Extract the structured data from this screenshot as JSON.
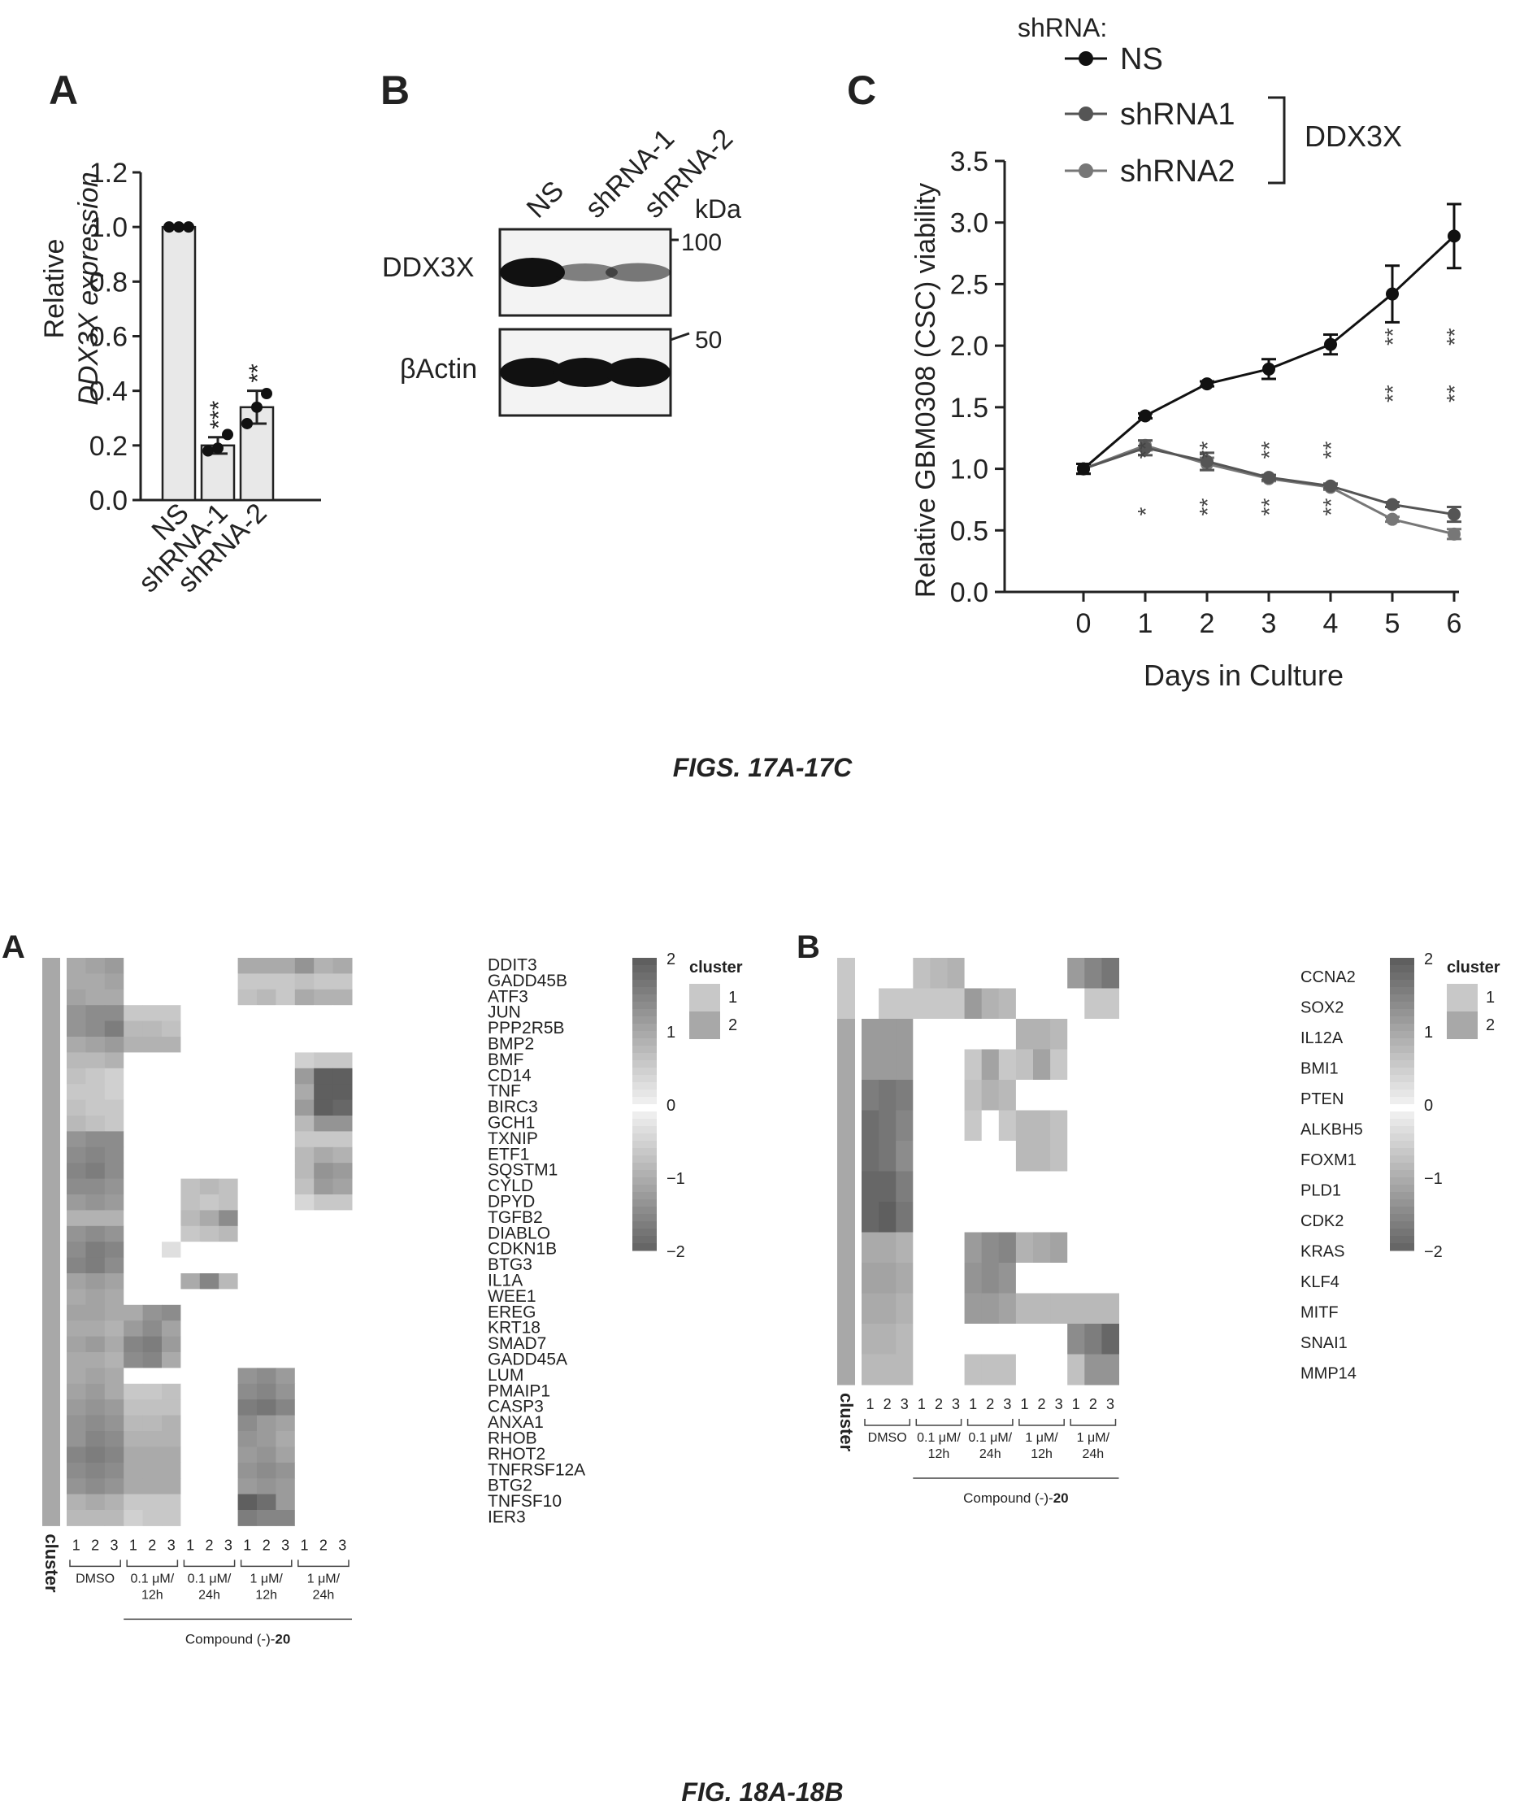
{
  "figure17": {
    "caption": "FIGS. 17A-17C",
    "panelA": {
      "label": "A",
      "ylabel1": "Relative",
      "ylabel2": "DDX3X expression",
      "categories": [
        "NS",
        "shRNA-1",
        "shRNA-2"
      ],
      "sig": [
        "",
        "***",
        "**"
      ]
    },
    "panelB": {
      "label": "B",
      "lanes": [
        "NS",
        "shRNA-1",
        "shRNA-2"
      ],
      "unit": "kDa",
      "rows": [
        "DDX3X",
        "βActin"
      ],
      "markers": [
        "100",
        "50"
      ],
      "band_intensity": {
        "DDX3X": [
          1.0,
          0.35,
          0.4
        ],
        "βActin": [
          1.0,
          1.0,
          1.0
        ]
      }
    },
    "panelC": {
      "label": "C",
      "legend_title": "shRNA:",
      "legend": [
        "NS",
        "shRNA1",
        "shRNA2"
      ],
      "bracket_label": "DDX3X",
      "ylabel": "Relative GBM0308 (CSC) viability",
      "xlabel": "Days in Culture",
      "sig": [
        "",
        "**\n*",
        "**\n**",
        "**\n**",
        "**\n**",
        "**\n**",
        "**\n**"
      ]
    }
  },
  "figure18": {
    "caption": "FIG. 18A-18B",
    "panelA": {
      "label": "A",
      "genes": [
        "DDIT3",
        "GADD45B",
        "ATF3",
        "JUN",
        "PPP2R5B",
        "BMP2",
        "BMF",
        "CD14",
        "TNF",
        "BIRC3",
        "GCH1",
        "TXNIP",
        "ETF1",
        "SQSTM1",
        "CYLD",
        "DPYD",
        "TGFB2",
        "DIABLO",
        "CDKN1B",
        "BTG3",
        "IL1A",
        "WEE1",
        "EREG",
        "KRT18",
        "SMAD7",
        "GADD45A",
        "LUM",
        "PMAIP1",
        "CASP3",
        "ANXA1",
        "RHOB",
        "RHOT2",
        "TNFRSF12A",
        "BTG2",
        "TNFSF10",
        "IER3"
      ]
    },
    "panelB": {
      "label": "B",
      "genes": [
        "CCNA2",
        "SOX2",
        "IL12A",
        "BMI1",
        "PTEN",
        "ALKBH5",
        "FOXM1",
        "PLD1",
        "CDK2",
        "KRAS",
        "KLF4",
        "MITF",
        "SNAI1",
        "MMP14"
      ]
    },
    "cluster_label": "cluster",
    "cluster_legend_title": "cluster",
    "cluster_values": [
      "1",
      "2"
    ],
    "scale_ticks": [
      "2",
      "1",
      "0",
      "−1",
      "−2"
    ],
    "replicates": [
      "1",
      "2",
      "3"
    ],
    "groups": [
      "DMSO",
      "0.1 μM/\n12h",
      "0.1 μM/\n24h",
      "1 μM/\n12h",
      "1 μM/\n24h"
    ],
    "compound_label": "Compound (-)-",
    "compound_number": "20"
  },
  "chart_data": [
    {
      "type": "bar",
      "title": "",
      "categories": [
        "NS",
        "shRNA-1",
        "shRNA-2"
      ],
      "values": [
        1.0,
        0.2,
        0.34
      ],
      "errors": [
        0.0,
        0.03,
        0.06
      ],
      "points": [
        [
          1.0,
          1.0,
          1.0
        ],
        [
          0.18,
          0.19,
          0.24
        ],
        [
          0.28,
          0.34,
          0.39
        ]
      ],
      "xlabel": "",
      "ylabel": "Relative DDX3X expression",
      "ylim": [
        0,
        1.2
      ],
      "yticks": [
        0.0,
        0.2,
        0.4,
        0.6,
        0.8,
        1.0,
        1.2
      ]
    },
    {
      "type": "line",
      "title": "",
      "x": [
        0,
        1,
        2,
        3,
        4,
        5,
        6
      ],
      "series": [
        {
          "name": "NS",
          "values": [
            1.0,
            1.43,
            1.69,
            1.81,
            2.01,
            2.42,
            2.89
          ],
          "errors": [
            0.04,
            0.02,
            0.02,
            0.08,
            0.08,
            0.23,
            0.26
          ],
          "color": "#111111"
        },
        {
          "name": "shRNA1",
          "values": [
            1.0,
            1.17,
            1.06,
            0.93,
            0.86,
            0.71,
            0.63
          ],
          "errors": [
            0.04,
            0.06,
            0.07,
            0.02,
            0.02,
            0.02,
            0.06
          ],
          "color": "#555555"
        },
        {
          "name": "shRNA2",
          "values": [
            1.0,
            1.19,
            1.04,
            0.92,
            0.85,
            0.59,
            0.47
          ],
          "errors": [
            0.04,
            0.04,
            0.05,
            0.02,
            0.02,
            0.02,
            0.04
          ],
          "color": "#777777"
        }
      ],
      "xlabel": "Days in Culture",
      "ylabel": "Relative GBM0308 (CSC) viability",
      "ylim": [
        0,
        3.5
      ],
      "yticks": [
        0.0,
        0.5,
        1.0,
        1.5,
        2.0,
        2.5,
        3.0,
        3.5
      ],
      "legend_position": "top-right"
    },
    {
      "type": "heatmap",
      "title": "",
      "rows": [
        "DDIT3",
        "GADD45B",
        "ATF3",
        "JUN",
        "PPP2R5B",
        "BMP2",
        "BMF",
        "CD14",
        "TNF",
        "BIRC3",
        "GCH1",
        "TXNIP",
        "ETF1",
        "SQSTM1",
        "CYLD",
        "DPYD",
        "TGFB2",
        "DIABLO",
        "CDKN1B",
        "BTG3",
        "IL1A",
        "WEE1",
        "EREG",
        "KRT18",
        "SMAD7",
        "GADD45A",
        "LUM",
        "PMAIP1",
        "CASP3",
        "ANXA1",
        "RHOB",
        "RHOT2",
        "TNFRSF12A",
        "BTG2",
        "TNFSF10",
        "IER3"
      ],
      "columns": [
        "DMSO-1",
        "DMSO-2",
        "DMSO-3",
        "0.1μM/12h-1",
        "0.1μM/12h-2",
        "0.1μM/12h-3",
        "0.1μM/24h-1",
        "0.1μM/24h-2",
        "0.1μM/24h-3",
        "1μM/12h-1",
        "1μM/12h-2",
        "1μM/12h-3",
        "1μM/24h-1",
        "1μM/24h-2",
        "1μM/24h-3"
      ],
      "row_clusters": [
        2,
        2,
        2,
        2,
        2,
        2,
        2,
        2,
        2,
        2,
        2,
        2,
        2,
        2,
        2,
        2,
        2,
        2,
        2,
        2,
        2,
        2,
        2,
        2,
        2,
        2,
        2,
        2,
        2,
        2,
        2,
        2,
        2,
        2,
        2,
        2
      ],
      "values": [
        [
          1.0,
          1.1,
          1.2,
          0,
          0,
          0,
          0,
          0,
          0,
          1.0,
          1.0,
          1.0,
          1.3,
          0.9,
          1.0
        ],
        [
          1.0,
          1.0,
          1.1,
          0,
          0,
          0,
          0,
          0,
          0,
          0.6,
          0.6,
          0.6,
          0.7,
          0.6,
          0.6
        ],
        [
          1.1,
          1.0,
          1.0,
          0,
          0,
          0,
          0,
          0,
          0,
          0.7,
          0.8,
          0.6,
          1.0,
          0.9,
          0.9
        ],
        [
          1.3,
          1.4,
          1.4,
          0.6,
          0.6,
          0.6,
          0,
          0,
          0,
          0,
          0,
          0,
          0,
          0,
          0
        ],
        [
          1.3,
          1.4,
          1.6,
          0.8,
          0.8,
          0.7,
          0,
          0,
          0,
          0,
          0,
          0,
          0,
          0,
          0
        ],
        [
          1.0,
          1.1,
          1.2,
          0.9,
          0.9,
          0.9,
          0,
          0,
          0,
          0,
          0,
          0,
          0,
          0,
          0
        ],
        [
          0.8,
          0.8,
          0.9,
          0,
          0,
          0,
          0,
          0,
          0,
          0,
          0,
          0,
          0.5,
          0.6,
          0.6
        ],
        [
          0.7,
          0.6,
          0.5,
          0,
          0,
          0,
          0,
          0,
          0,
          0,
          0,
          0,
          1.2,
          2.1,
          2.0
        ],
        [
          0.6,
          0.6,
          0.5,
          0,
          0,
          0,
          0,
          0,
          0,
          0,
          0,
          0,
          1.0,
          2.1,
          2.0
        ],
        [
          0.7,
          0.6,
          0.6,
          0,
          0,
          0,
          0,
          0,
          0,
          0,
          0,
          0,
          1.2,
          2.0,
          1.9
        ],
        [
          0.8,
          0.7,
          0.6,
          0,
          0,
          0,
          0,
          0,
          0,
          0,
          0,
          0,
          0.8,
          1.3,
          1.3
        ],
        [
          1.3,
          1.4,
          1.4,
          0,
          0,
          0,
          0,
          0,
          0,
          0,
          0,
          0,
          0.6,
          0.6,
          0.6
        ],
        [
          1.4,
          1.5,
          1.4,
          0,
          0,
          0,
          0,
          0,
          0,
          0,
          0,
          0,
          0.8,
          1.0,
          0.9
        ],
        [
          1.5,
          1.6,
          1.4,
          0,
          0,
          0,
          0,
          0,
          0,
          0,
          0,
          0,
          0.8,
          1.3,
          1.2
        ],
        [
          1.4,
          1.4,
          1.3,
          0,
          0,
          0,
          0.7,
          0.8,
          0.7,
          0,
          0,
          0,
          0.7,
          1.2,
          1.1
        ],
        [
          1.2,
          1.3,
          1.2,
          0,
          0,
          0,
          0.7,
          0.6,
          0.7,
          0,
          0,
          0,
          0.4,
          0.6,
          0.6
        ],
        [
          0.9,
          0.9,
          0.9,
          0,
          0,
          0,
          0.8,
          1.0,
          1.4,
          0,
          0,
          0,
          0,
          0,
          0
        ],
        [
          1.3,
          1.4,
          1.3,
          0,
          0,
          0,
          0.6,
          0.7,
          0.8,
          0,
          0,
          0,
          0,
          0,
          0
        ],
        [
          1.4,
          1.6,
          1.5,
          0,
          0,
          0.3,
          0,
          0,
          0,
          0,
          0,
          0,
          0,
          0,
          0
        ],
        [
          1.5,
          1.6,
          1.4,
          0,
          0,
          0,
          0,
          0,
          0,
          0,
          0,
          0,
          0,
          0,
          0
        ],
        [
          1.1,
          1.2,
          1.1,
          0,
          0,
          0,
          1.0,
          1.5,
          0.8,
          0,
          0,
          0,
          0,
          0,
          0
        ],
        [
          1.0,
          1.1,
          1.0,
          0,
          0,
          0,
          0,
          0,
          0,
          0,
          0,
          0,
          0,
          0,
          0
        ],
        [
          1.1,
          1.1,
          1.0,
          1.0,
          1.3,
          1.4,
          0,
          0,
          0,
          0,
          0,
          0,
          0,
          0,
          0
        ],
        [
          1.0,
          1.0,
          0.9,
          1.2,
          1.4,
          1.1,
          0,
          0,
          0,
          0,
          0,
          0,
          0,
          0,
          0
        ],
        [
          1.1,
          1.2,
          1.0,
          1.5,
          1.6,
          1.2,
          0,
          0,
          0,
          0,
          0,
          0,
          0,
          0,
          0
        ],
        [
          1.0,
          1.0,
          0.9,
          1.4,
          1.5,
          1.0,
          0,
          0,
          0,
          0,
          0,
          0,
          0,
          0,
          0
        ],
        [
          1.0,
          1.1,
          1.0,
          0,
          0,
          0,
          0,
          0,
          0,
          1.3,
          1.4,
          1.2,
          0,
          0,
          0
        ],
        [
          1.1,
          1.2,
          1.0,
          0.6,
          0.6,
          0.7,
          0,
          0,
          0,
          1.4,
          1.5,
          1.3,
          0,
          0,
          0
        ],
        [
          1.2,
          1.3,
          1.2,
          0.7,
          0.7,
          0.7,
          0,
          0,
          0,
          1.6,
          1.7,
          1.5,
          0,
          0,
          0
        ],
        [
          1.3,
          1.4,
          1.3,
          0.8,
          0.8,
          0.9,
          0,
          0,
          0,
          1.4,
          1.2,
          1.1,
          0,
          0,
          0
        ],
        [
          1.3,
          1.5,
          1.4,
          0.9,
          0.9,
          0.9,
          0,
          0,
          0,
          1.3,
          1.2,
          1.0,
          0,
          0,
          0
        ],
        [
          1.5,
          1.6,
          1.5,
          1.0,
          1.0,
          1.0,
          0,
          0,
          0,
          1.2,
          1.3,
          1.1,
          0,
          0,
          0
        ],
        [
          1.4,
          1.5,
          1.4,
          1.0,
          1.0,
          1.0,
          0,
          0,
          0,
          1.3,
          1.4,
          1.3,
          0,
          0,
          0
        ],
        [
          1.3,
          1.4,
          1.3,
          1.0,
          1.0,
          1.0,
          0,
          0,
          0,
          1.2,
          1.3,
          1.2,
          0,
          0,
          0
        ],
        [
          0.9,
          1.0,
          0.9,
          0.6,
          0.6,
          0.6,
          0,
          0,
          0,
          2.0,
          1.8,
          1.2,
          0,
          0,
          0
        ],
        [
          0.8,
          0.8,
          0.8,
          0.5,
          0.6,
          0.6,
          0,
          0,
          0,
          1.6,
          1.5,
          1.5,
          0,
          0,
          0
        ]
      ],
      "scale": [
        -2,
        2
      ]
    },
    {
      "type": "heatmap",
      "title": "",
      "rows": [
        "CCNA2",
        "SOX2",
        "IL12A",
        "BMI1",
        "PTEN",
        "ALKBH5",
        "FOXM1",
        "PLD1",
        "CDK2",
        "KRAS",
        "KLF4",
        "MITF",
        "SNAI1",
        "MMP14"
      ],
      "columns": [
        "DMSO-1",
        "DMSO-2",
        "DMSO-3",
        "0.1μM/12h-1",
        "0.1μM/12h-2",
        "0.1μM/12h-3",
        "0.1μM/24h-1",
        "0.1μM/24h-2",
        "0.1μM/24h-3",
        "1μM/12h-1",
        "1μM/12h-2",
        "1μM/12h-3",
        "1μM/24h-1",
        "1μM/24h-2",
        "1μM/24h-3"
      ],
      "row_clusters": [
        1,
        1,
        2,
        2,
        2,
        2,
        2,
        2,
        2,
        2,
        2,
        2,
        2,
        2
      ],
      "values": [
        [
          0,
          0,
          0,
          0.7,
          0.8,
          0.9,
          0,
          0,
          0,
          0,
          0,
          0,
          1.2,
          1.5,
          1.7
        ],
        [
          0,
          0.6,
          0.6,
          0.6,
          0.6,
          0.6,
          1.2,
          0.9,
          0.8,
          0,
          0,
          0,
          0,
          0.6,
          0.6
        ],
        [
          1.2,
          1.2,
          1.2,
          0,
          0,
          0,
          0,
          0,
          0,
          0.9,
          0.9,
          0.8,
          0,
          0,
          0
        ],
        [
          1.2,
          1.2,
          1.2,
          0,
          0,
          0,
          0.6,
          1.1,
          0.6,
          0.7,
          1.1,
          0.6,
          0,
          0,
          0
        ],
        [
          1.6,
          1.7,
          1.6,
          0,
          0,
          0,
          0.7,
          0.9,
          0.8,
          0,
          0,
          0,
          0,
          0,
          0
        ],
        [
          1.8,
          1.7,
          1.5,
          0,
          0,
          0,
          0.6,
          0,
          0.6,
          0.8,
          0.8,
          0.7,
          0,
          0,
          0
        ],
        [
          1.8,
          1.7,
          1.4,
          0,
          0,
          0,
          0,
          0,
          0,
          0.8,
          0.8,
          0.7,
          0,
          0,
          0
        ],
        [
          1.9,
          1.9,
          1.6,
          0,
          0,
          0,
          0,
          0,
          0,
          0,
          0,
          0,
          0,
          0,
          0
        ],
        [
          1.9,
          2.0,
          1.7,
          0,
          0,
          0,
          0,
          0,
          0,
          0,
          0,
          0,
          0,
          0,
          0
        ],
        [
          1.0,
          1.0,
          0.9,
          0,
          0,
          0,
          1.2,
          1.4,
          1.5,
          0.9,
          1.0,
          1.1,
          0,
          0,
          0
        ],
        [
          1.1,
          1.1,
          1.0,
          0,
          0,
          0,
          1.3,
          1.4,
          1.3,
          0,
          0,
          0,
          0,
          0,
          0
        ],
        [
          1.0,
          1.0,
          0.9,
          0,
          0,
          0,
          1.2,
          1.2,
          1.1,
          0.8,
          0.8,
          0.8,
          0.8,
          0.8,
          0.8
        ],
        [
          0.9,
          0.9,
          0.8,
          0,
          0,
          0,
          0,
          0,
          0,
          0,
          0,
          0,
          1.4,
          1.6,
          1.9
        ],
        [
          0.8,
          0.8,
          0.8,
          0,
          0,
          0,
          0.7,
          0.7,
          0.7,
          0,
          0,
          0,
          0.7,
          1.3,
          1.3
        ]
      ],
      "scale": [
        -2,
        2
      ]
    }
  ]
}
